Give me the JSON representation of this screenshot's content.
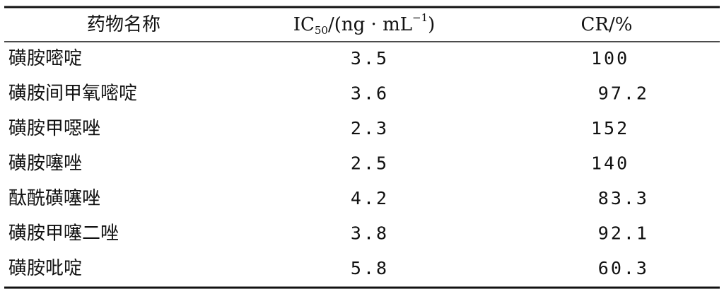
{
  "table": {
    "header": [
      "药物名称",
      {
        "main": "IC",
        "sub": "50",
        "mid": "/(ng · mL",
        "sup": "−1",
        "end": ")"
      },
      "CR/%"
    ],
    "rows": [
      [
        "磺胺嘧啶",
        3.5,
        100
      ],
      [
        "磺胺间甲氧嘧啶",
        3.6,
        97.2
      ],
      [
        "磺胺甲噁唑",
        2.3,
        152
      ],
      [
        "磺胺噻唑",
        2.5,
        140
      ],
      [
        "酞酰磺噻唑",
        4.2,
        83.3
      ],
      [
        "磺胺甲噻二唑",
        3.8,
        92.1
      ],
      [
        "磺胺吡啶",
        5.8,
        60.3
      ]
    ]
  }
}
